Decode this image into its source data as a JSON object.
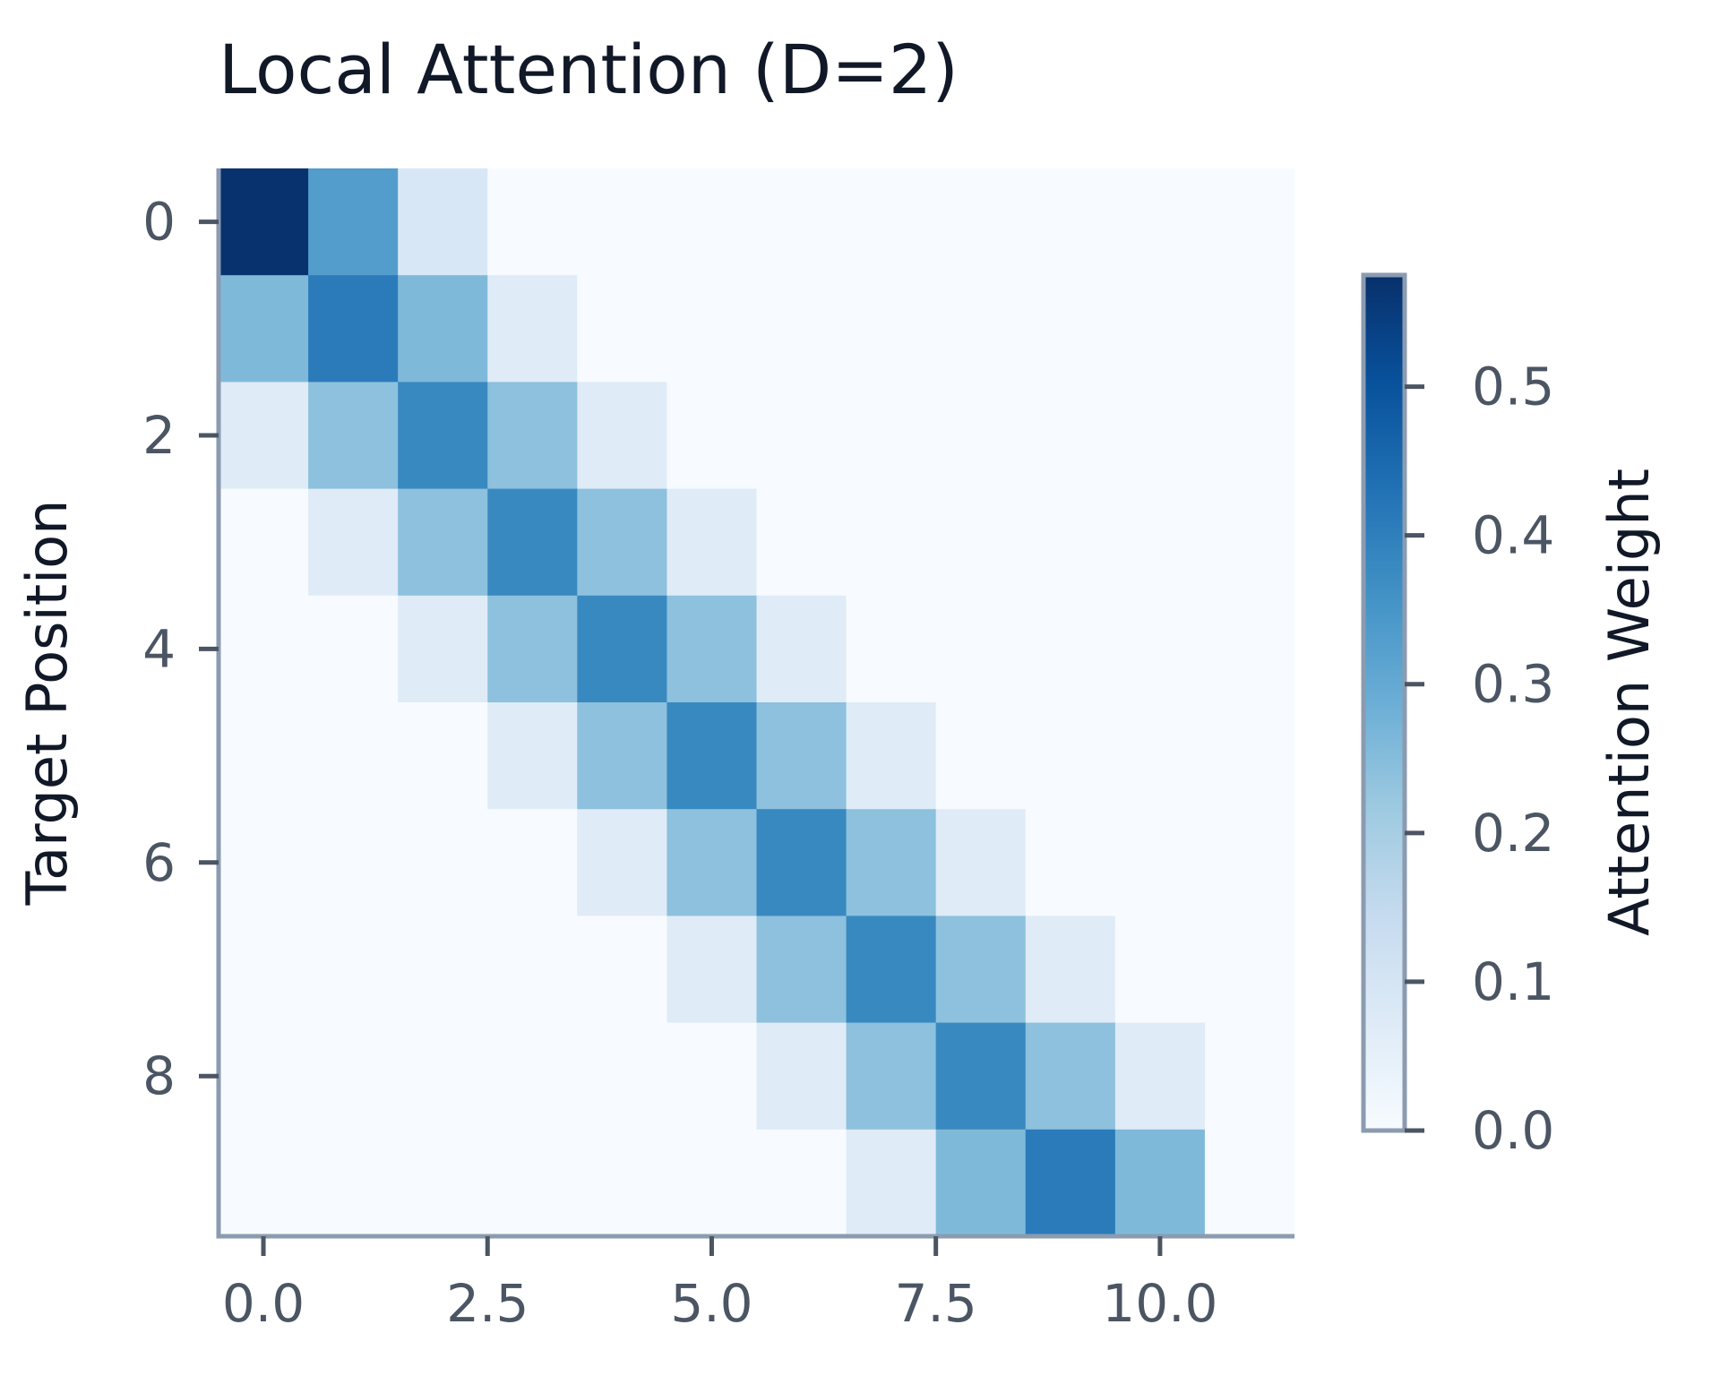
{
  "chart_data": {
    "type": "heatmap",
    "title": "Local Attention (D=2)",
    "xlabel": "",
    "ylabel": "Target Position",
    "colorbar_label": "Attention Weight",
    "colormap": "Blues",
    "colorbar_colors": [
      "#f7fbff",
      "#deebf7",
      "#c6dbef",
      "#9ecae1",
      "#6baed6",
      "#4292c6",
      "#2171b5",
      "#08519c",
      "#08306b"
    ],
    "x_ticks": [
      0.0,
      2.5,
      5.0,
      7.5,
      10.0
    ],
    "x_tick_labels": [
      "0.0",
      "2.5",
      "5.0",
      "7.5",
      "10.0"
    ],
    "y_ticks": [
      0,
      2,
      4,
      6,
      8
    ],
    "y_tick_labels": [
      "0",
      "2",
      "4",
      "6",
      "8"
    ],
    "colorbar_ticks": [
      0.0,
      0.1,
      0.2,
      0.3,
      0.4,
      0.5
    ],
    "colorbar_tick_labels": [
      "0.0",
      "0.1",
      "0.2",
      "0.3",
      "0.4",
      "0.5"
    ],
    "vmin": 0.0,
    "vmax": 0.575,
    "xlim": [
      -0.5,
      11.5
    ],
    "ylim": [
      9.5,
      -0.5
    ],
    "n_cols": 12,
    "n_rows": 10,
    "values": [
      [
        0.57,
        0.33,
        0.09,
        0,
        0,
        0,
        0,
        0,
        0,
        0,
        0,
        0
      ],
      [
        0.26,
        0.41,
        0.26,
        0.07,
        0,
        0,
        0,
        0,
        0,
        0,
        0,
        0
      ],
      [
        0.07,
        0.24,
        0.38,
        0.24,
        0.07,
        0,
        0,
        0,
        0,
        0,
        0,
        0
      ],
      [
        0,
        0.07,
        0.24,
        0.38,
        0.24,
        0.07,
        0,
        0,
        0,
        0,
        0,
        0
      ],
      [
        0,
        0,
        0.07,
        0.24,
        0.38,
        0.24,
        0.07,
        0,
        0,
        0,
        0,
        0
      ],
      [
        0,
        0,
        0,
        0.07,
        0.24,
        0.38,
        0.24,
        0.07,
        0,
        0,
        0,
        0
      ],
      [
        0,
        0,
        0,
        0,
        0.07,
        0.24,
        0.38,
        0.24,
        0.07,
        0,
        0,
        0
      ],
      [
        0,
        0,
        0,
        0,
        0,
        0.07,
        0.24,
        0.38,
        0.24,
        0.07,
        0,
        0
      ],
      [
        0,
        0,
        0,
        0,
        0,
        0,
        0.07,
        0.24,
        0.38,
        0.24,
        0.07,
        0
      ],
      [
        0,
        0,
        0,
        0,
        0,
        0,
        0,
        0.07,
        0.26,
        0.41,
        0.26,
        0
      ]
    ]
  }
}
